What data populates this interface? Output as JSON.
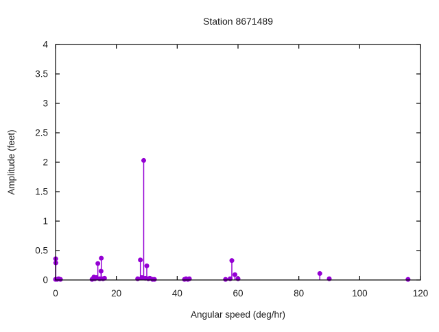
{
  "page": {
    "background_color": "#ffffff"
  },
  "chart_data": {
    "type": "stem",
    "title": "Station 8671489",
    "xlabel": "Angular speed (deg/hr)",
    "ylabel": "Amplitude (feet)",
    "xlim": [
      0,
      120
    ],
    "ylim": [
      0,
      4
    ],
    "xticks": [
      0,
      20,
      40,
      60,
      80,
      100,
      120
    ],
    "yticks": [
      0,
      0.5,
      1,
      1.5,
      2,
      2.5,
      3,
      3.5,
      4
    ],
    "grid": false,
    "legend": "none",
    "series_color": "#9400d3",
    "axis_color": "#000000",
    "text_color": "#1a1a1a",
    "points": [
      [
        0.0,
        0.01
      ],
      [
        0.04,
        0.36
      ],
      [
        0.08,
        0.29
      ],
      [
        0.5,
        0.01
      ],
      [
        1.0,
        0.02
      ],
      [
        1.6,
        0.01
      ],
      [
        12.0,
        0.01
      ],
      [
        12.6,
        0.05
      ],
      [
        12.9,
        0.02
      ],
      [
        13.4,
        0.04
      ],
      [
        13.9,
        0.28
      ],
      [
        14.5,
        0.02
      ],
      [
        14.96,
        0.15
      ],
      [
        15.04,
        0.37
      ],
      [
        15.6,
        0.02
      ],
      [
        16.1,
        0.03
      ],
      [
        27.0,
        0.02
      ],
      [
        27.9,
        0.34
      ],
      [
        28.4,
        0.04
      ],
      [
        28.98,
        2.03
      ],
      [
        29.5,
        0.03
      ],
      [
        30.0,
        0.24
      ],
      [
        30.5,
        0.02
      ],
      [
        31.0,
        0.03
      ],
      [
        31.9,
        0.01
      ],
      [
        32.5,
        0.01
      ],
      [
        42.4,
        0.01
      ],
      [
        42.9,
        0.02
      ],
      [
        43.5,
        0.01
      ],
      [
        44.0,
        0.02
      ],
      [
        55.9,
        0.01
      ],
      [
        57.4,
        0.02
      ],
      [
        57.97,
        0.33
      ],
      [
        58.98,
        0.09
      ],
      [
        60.0,
        0.02
      ],
      [
        86.9,
        0.11
      ],
      [
        90.0,
        0.02
      ],
      [
        115.9,
        0.01
      ]
    ]
  }
}
